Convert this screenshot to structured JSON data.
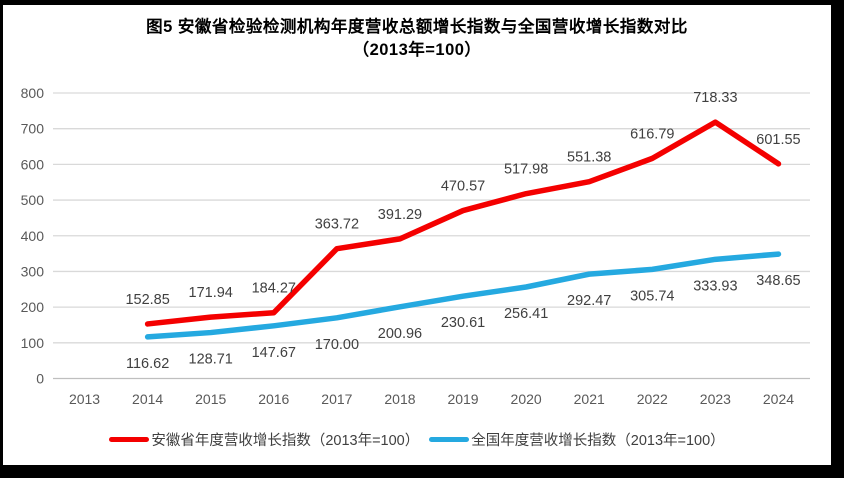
{
  "title": {
    "line1": "图5  安徽省检验检测机构年度营收总额增长指数与全国营收增长指数对比",
    "line2": "（2013年=100）"
  },
  "chart_data": {
    "type": "line",
    "categories": [
      "2013",
      "2014",
      "2015",
      "2016",
      "2017",
      "2018",
      "2019",
      "2020",
      "2021",
      "2022",
      "2023",
      "2024"
    ],
    "series": [
      {
        "id": "anhui",
        "name": "安徽省年度营收增长指数（2013年=100）",
        "color": "#f40000",
        "values": [
          null,
          152.85,
          171.94,
          184.27,
          363.72,
          391.29,
          470.57,
          517.98,
          551.38,
          616.79,
          718.33,
          601.55
        ],
        "point_labels": [
          "",
          "152.85",
          "171.94",
          "184.27",
          "363.72",
          "391.29",
          "470.57",
          "517.98",
          "551.38",
          "616.79",
          "718.33",
          "601.55"
        ],
        "label_position": "above"
      },
      {
        "id": "national",
        "name": "全国年度营收增长指数（2013年=100）",
        "color": "#25a9e0",
        "values": [
          null,
          116.62,
          128.71,
          147.67,
          170.0,
          200.96,
          230.61,
          256.41,
          292.47,
          305.74,
          333.93,
          348.65
        ],
        "point_labels": [
          "",
          "116.62",
          "128.71",
          "147.67",
          "170.00",
          "200.96",
          "230.61",
          "256.41",
          "292.47",
          "305.74",
          "333.93",
          "348.65"
        ],
        "label_position": "below"
      }
    ],
    "ylim": [
      0,
      800
    ],
    "ytick_step": 100,
    "ytick_labels": [
      "0",
      "100",
      "200",
      "300",
      "400",
      "500",
      "600",
      "700",
      "800"
    ],
    "grid": true,
    "legend_position": "bottom",
    "colors": {
      "gridline": "#d9d9d9",
      "zero_line": "#bfbfbf",
      "tick_label": "#595959",
      "data_label": "#404040",
      "title": "#000000"
    }
  }
}
